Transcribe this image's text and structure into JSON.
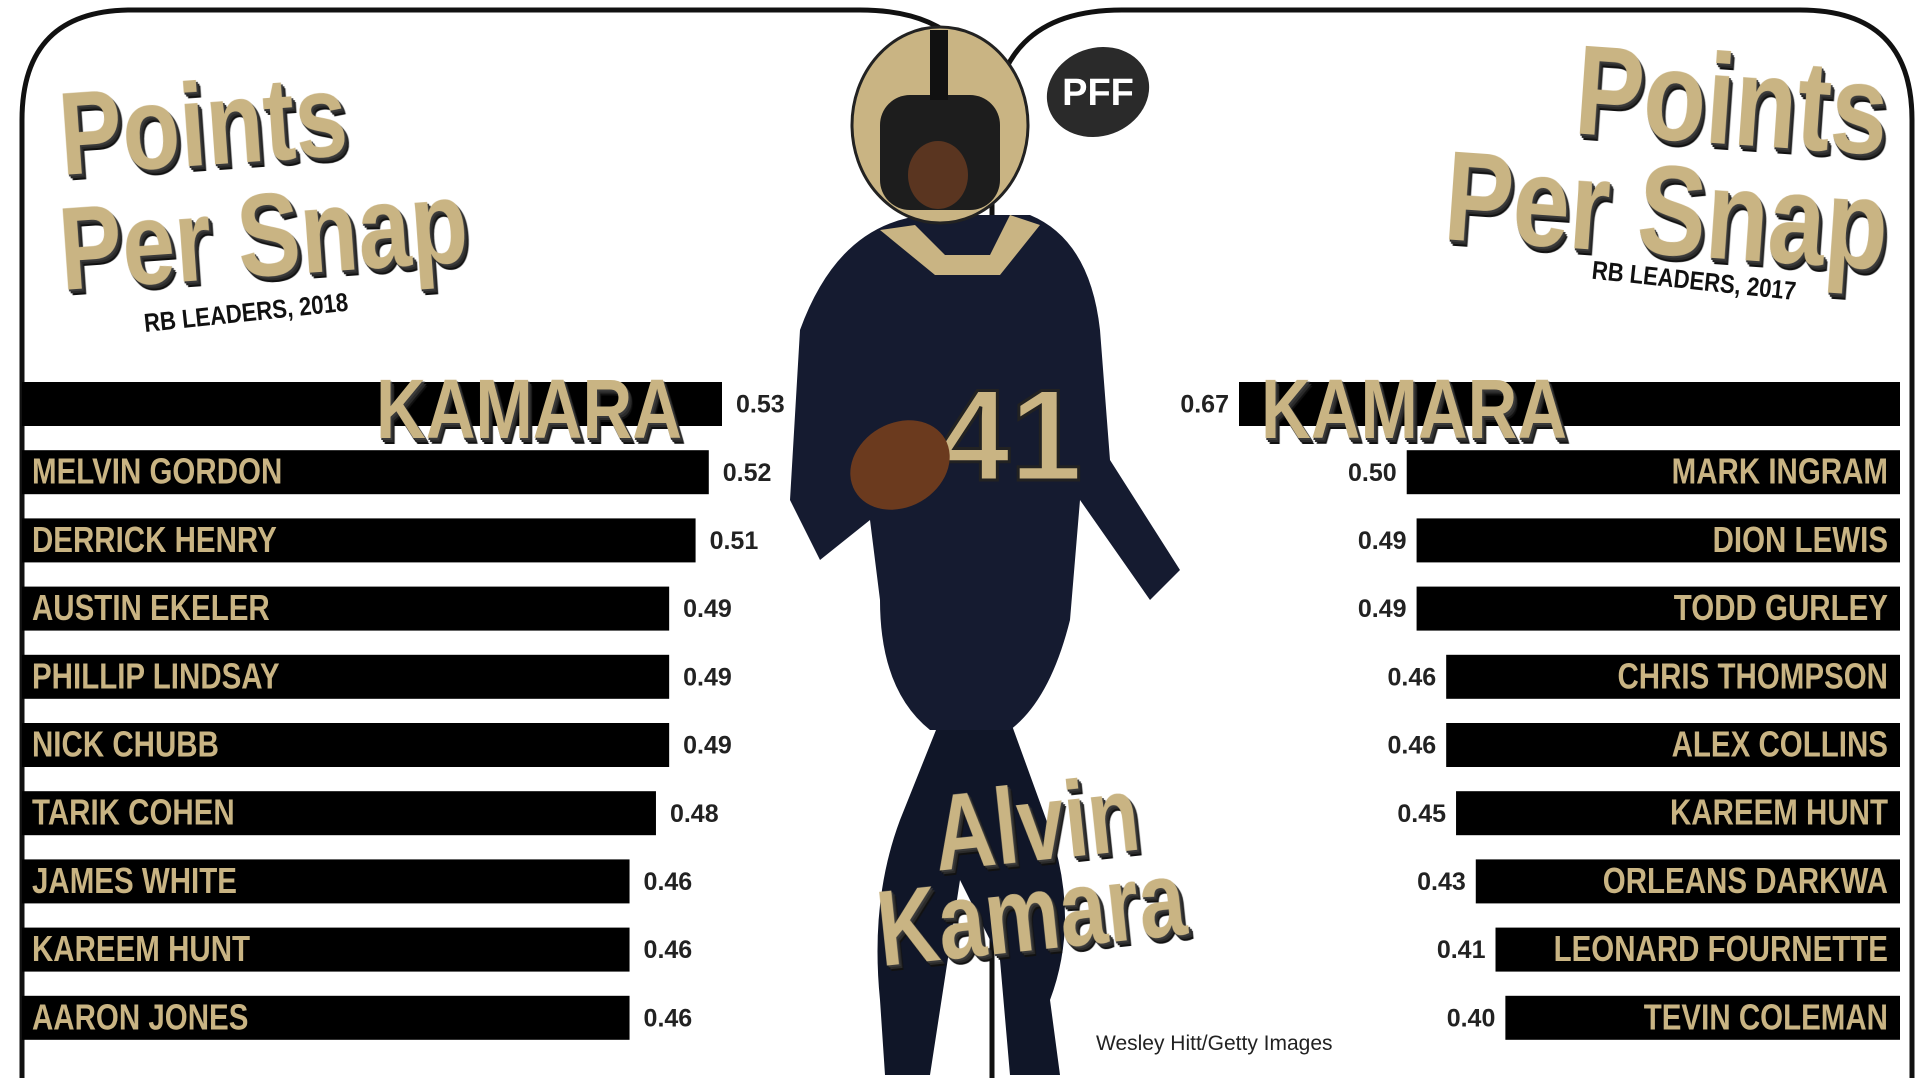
{
  "logo": "PFF",
  "center_title": [
    "Alvin",
    "Kamara"
  ],
  "photo_credit": "Wesley Hitt/Getty Images",
  "chart_data": [
    {
      "type": "bar",
      "bar_anchor": "left",
      "title": [
        "Points",
        "Per Snap"
      ],
      "subtitle": "RB LEADERS, 2018",
      "categories": [
        "KAMARA",
        "MELVIN GORDON",
        "DERRICK HENRY",
        "AUSTIN EKELER",
        "PHILLIP LINDSAY",
        "NICK CHUBB",
        "TARIK COHEN",
        "JAMES WHITE",
        "KAREEM HUNT",
        "AARON JONES"
      ],
      "values": [
        0.53,
        0.52,
        0.51,
        0.49,
        0.49,
        0.49,
        0.48,
        0.46,
        0.46,
        0.46
      ],
      "color": "#000000"
    },
    {
      "type": "bar",
      "bar_anchor": "right",
      "title": [
        "Points",
        "Per Snap"
      ],
      "subtitle": "RB LEADERS, 2017",
      "categories": [
        "KAMARA",
        "MARK INGRAM",
        "DION LEWIS",
        "TODD GURLEY",
        "CHRIS THOMPSON",
        "ALEX COLLINS",
        "KAREEM HUNT",
        "ORLEANS DARKWA",
        "LEONARD FOURNETTE",
        "TEVIN COLEMAN"
      ],
      "values": [
        0.67,
        0.5,
        0.49,
        0.49,
        0.46,
        0.46,
        0.45,
        0.43,
        0.41,
        0.4
      ],
      "value_labels": [
        "0.67",
        "0.50",
        "0.49",
        "0.49",
        "0.46",
        "0.46",
        "0.45",
        "0.43",
        "0.41",
        "0.40"
      ],
      "color": "#000000"
    }
  ]
}
